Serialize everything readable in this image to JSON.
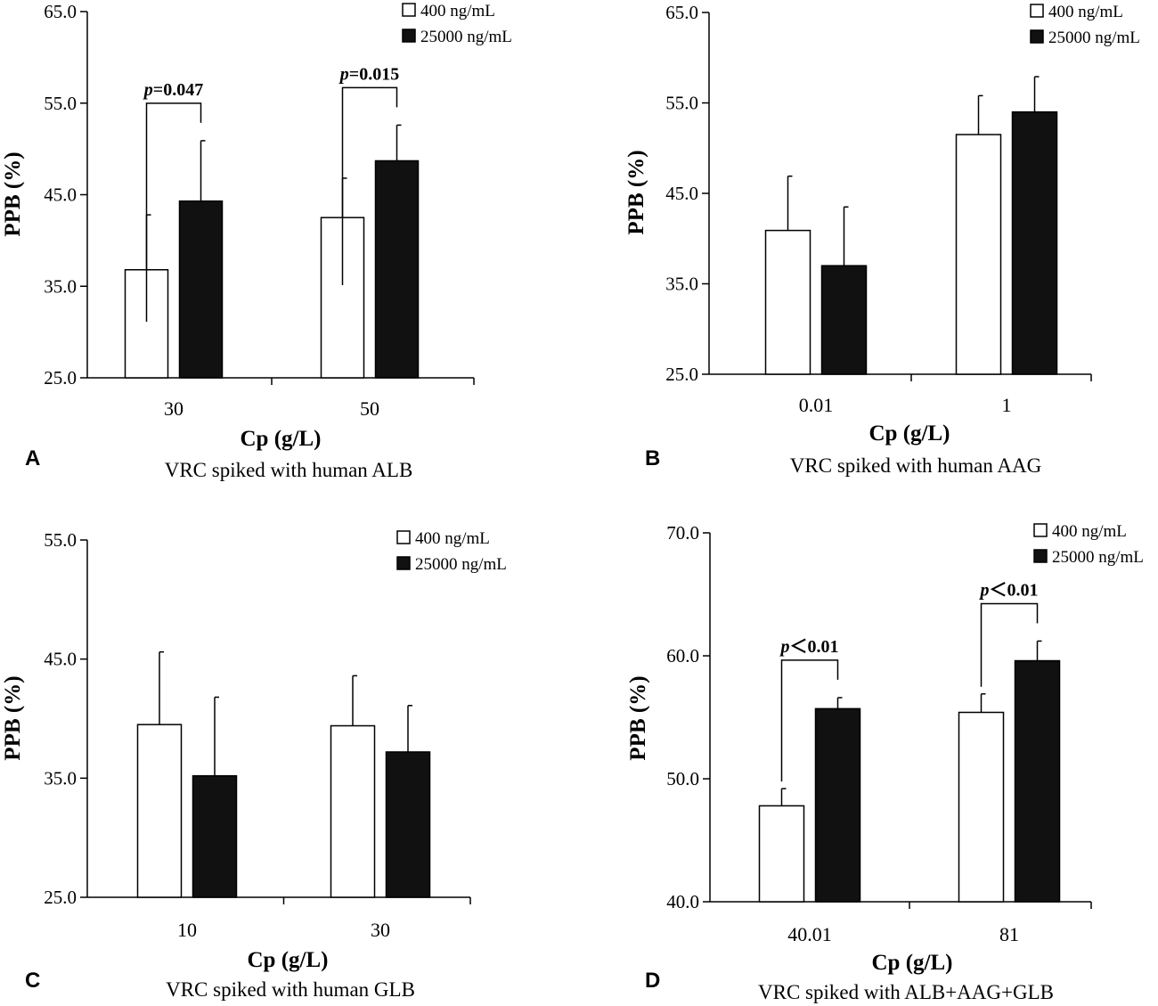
{
  "chart_data": [
    {
      "panel": "A",
      "type": "bar",
      "caption": "VRC spiked with human ALB",
      "xlabel": "Cp (g/L)",
      "ylabel": "PPB (%)",
      "ylim": [
        25.0,
        65.0
      ],
      "yticks": [
        "25.0",
        "35.0",
        "45.0",
        "55.0",
        "65.0"
      ],
      "categories": [
        "30",
        "50"
      ],
      "series": [
        {
          "name": "400 ng/mL",
          "values": [
            36.8,
            42.5
          ],
          "errors": [
            6.0,
            4.3
          ]
        },
        {
          "name": "25000 ng/mL",
          "values": [
            44.3,
            48.7
          ],
          "errors": [
            6.6,
            3.9
          ]
        }
      ],
      "annotations": [
        {
          "category": "30",
          "p": "p",
          "rest": "=0.047"
        },
        {
          "category": "50",
          "p": "p",
          "rest": "=0.015"
        }
      ]
    },
    {
      "panel": "B",
      "type": "bar",
      "caption": "VRC spiked with human AAG",
      "xlabel": "Cp (g/L)",
      "ylabel": "PPB (%)",
      "ylim": [
        25.0,
        65.0
      ],
      "yticks": [
        "25.0",
        "35.0",
        "45.0",
        "55.0",
        "65.0"
      ],
      "categories": [
        "0.01",
        "1"
      ],
      "series": [
        {
          "name": "400 ng/mL",
          "values": [
            40.9,
            51.5
          ],
          "errors": [
            6.0,
            4.3
          ]
        },
        {
          "name": "25000 ng/mL",
          "values": [
            37.0,
            54.0
          ],
          "errors": [
            6.5,
            3.9
          ]
        }
      ],
      "annotations": []
    },
    {
      "panel": "C",
      "type": "bar",
      "caption": "VRC spiked with human GLB",
      "xlabel": "Cp (g/L)",
      "ylabel": "PPB (%)",
      "ylim": [
        25.0,
        55.0
      ],
      "yticks": [
        "25.0",
        "35.0",
        "45.0",
        "55.0"
      ],
      "categories": [
        "10",
        "30"
      ],
      "series": [
        {
          "name": "400 ng/mL",
          "values": [
            39.5,
            39.4
          ],
          "errors": [
            6.1,
            4.2
          ]
        },
        {
          "name": "25000 ng/mL",
          "values": [
            35.2,
            37.2
          ],
          "errors": [
            6.6,
            3.9
          ]
        }
      ],
      "annotations": []
    },
    {
      "panel": "D",
      "type": "bar",
      "caption": "VRC spiked with ALB+AAG+GLB",
      "xlabel": "Cp (g/L)",
      "ylabel": "PPB (%)",
      "ylim": [
        40.0,
        70.0
      ],
      "yticks": [
        "40.0",
        "50.0",
        "60.0",
        "70.0"
      ],
      "categories": [
        "40.01",
        "81"
      ],
      "series": [
        {
          "name": "400 ng/mL",
          "values": [
            47.8,
            55.4
          ],
          "errors": [
            1.4,
            1.5
          ]
        },
        {
          "name": "25000 ng/mL",
          "values": [
            55.7,
            59.6
          ],
          "errors": [
            0.9,
            1.6
          ]
        }
      ],
      "annotations": [
        {
          "category": "40.01",
          "p": "p",
          "rest": "＜0.01"
        },
        {
          "category": "81",
          "p": "p",
          "rest": "＜0.01"
        }
      ]
    }
  ]
}
